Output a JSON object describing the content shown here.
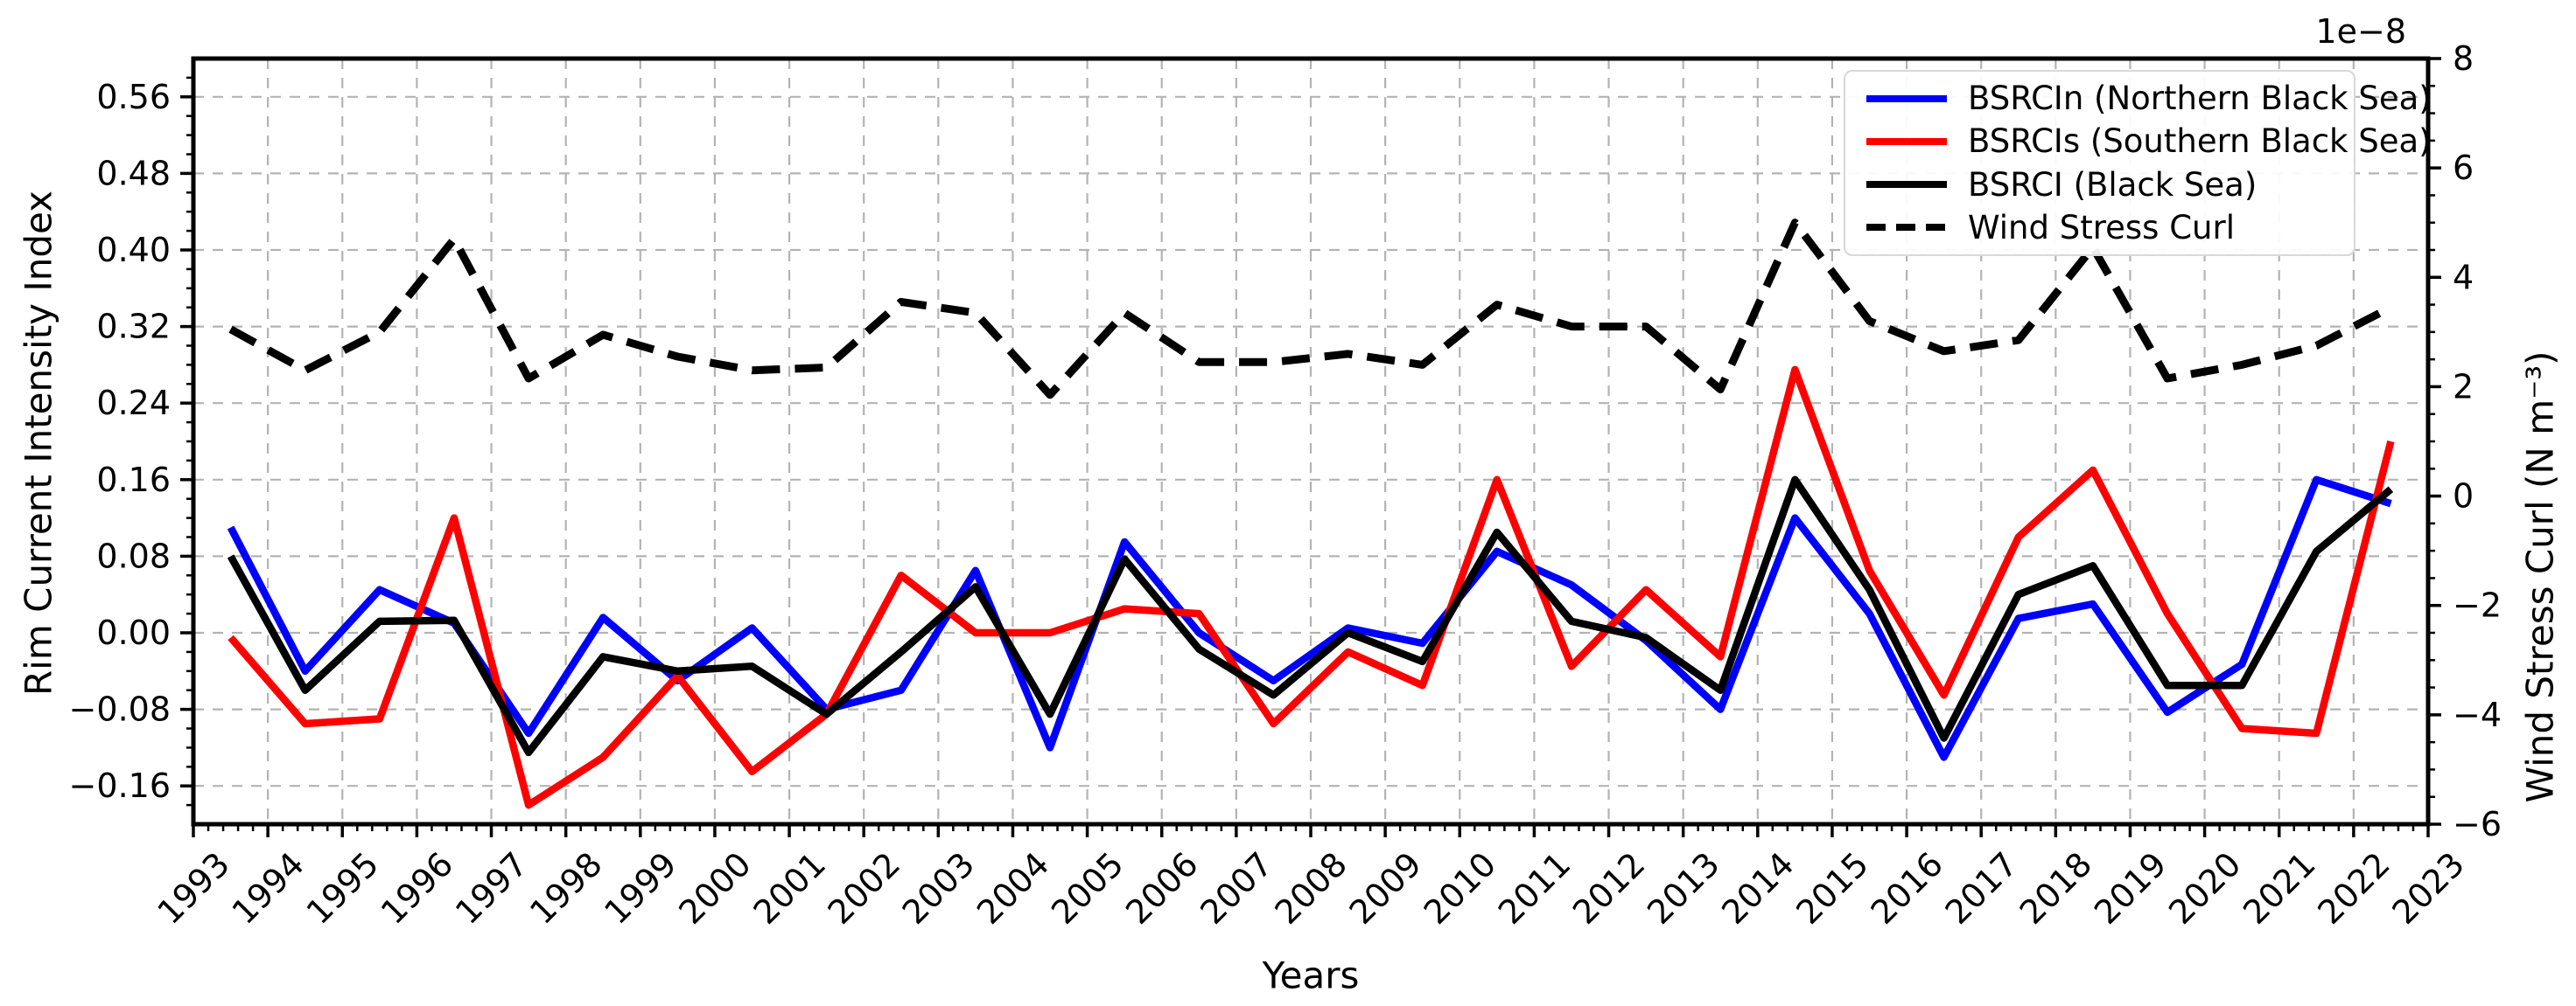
{
  "figure": {
    "offset_text": "1e−8",
    "xlabel": "Years",
    "ylabel_left": "Rim Current Intensity Index",
    "ylabel_right": "Wind Stress Curl (N m⁻³)"
  },
  "legend": {
    "items": [
      {
        "label": "BSRCIn (Northern Black Sea)",
        "color": "#0000ff",
        "dashed": false
      },
      {
        "label": "BSRCIs (Southern Black Sea)",
        "color": "#ff0000",
        "dashed": false
      },
      {
        "label": "BSRCI (Black Sea)",
        "color": "#000000",
        "dashed": false
      },
      {
        "label": "Wind Stress Curl",
        "color": "#000000",
        "dashed": true
      }
    ]
  },
  "axes": {
    "x_ticks": {
      "values": [
        1993,
        1994,
        1995,
        1996,
        1997,
        1998,
        1999,
        2000,
        2001,
        2002,
        2003,
        2004,
        2005,
        2006,
        2007,
        2008,
        2009,
        2010,
        2011,
        2012,
        2013,
        2014,
        2015,
        2016,
        2017,
        2018,
        2019,
        2020,
        2021,
        2022,
        2023
      ],
      "labels": [
        "1993",
        "1994",
        "1995",
        "1996",
        "1997",
        "1998",
        "1999",
        "2000",
        "2001",
        "2002",
        "2003",
        "2004",
        "2005",
        "2006",
        "2007",
        "2008",
        "2009",
        "2010",
        "2011",
        "2012",
        "2013",
        "2014",
        "2015",
        "2016",
        "2017",
        "2018",
        "2019",
        "2020",
        "2021",
        "2022",
        "2023"
      ],
      "minor_step": 0.2
    },
    "y_left": {
      "lim": [
        -0.2,
        0.6
      ],
      "tick_values": [
        0.56,
        0.48,
        0.4,
        0.32,
        0.24,
        0.16,
        0.08,
        0.0,
        -0.08,
        -0.16
      ],
      "tick_labels": [
        "0.56",
        "0.48",
        "0.40",
        "0.32",
        "0.24",
        "0.16",
        "0.08",
        "0.00",
        "−0.08",
        "−0.16"
      ],
      "minor_step": 0.02,
      "grid": true
    },
    "y_right": {
      "lim_1e8": [
        -6,
        8
      ],
      "tick_values": [
        8,
        6,
        4,
        2,
        0,
        -2,
        -4,
        -6
      ],
      "tick_labels": [
        "8",
        "6",
        "4",
        "2",
        "0",
        "−2",
        "−4",
        "−6"
      ],
      "minor_step": 0.5,
      "grid": false
    }
  },
  "chart_data": {
    "type": "line",
    "title": "",
    "xlabel": "Years",
    "ylabel_left": "Rim Current Intensity Index",
    "ylabel_right": "Wind Stress Curl (N m⁻³), units 1e−8",
    "x_range_years": [
      1993,
      2023
    ],
    "point_offset_years": 0.5,
    "years": [
      1993,
      1994,
      1995,
      1996,
      1997,
      1998,
      1999,
      2000,
      2001,
      2002,
      2003,
      2004,
      2005,
      2006,
      2007,
      2008,
      2009,
      2010,
      2011,
      2012,
      2013,
      2014,
      2015,
      2016,
      2017,
      2018,
      2019,
      2020,
      2021,
      2022
    ],
    "series": [
      {
        "name": "BSRCIn (Northern Black Sea)",
        "color": "#0000ff",
        "style": "solid",
        "axis": "left",
        "values": [
          0.11,
          -0.04,
          0.045,
          0.01,
          -0.105,
          0.016,
          -0.05,
          0.005,
          -0.08,
          -0.06,
          0.065,
          -0.12,
          0.095,
          0.0,
          -0.05,
          0.005,
          -0.011,
          0.085,
          0.05,
          -0.008,
          -0.08,
          0.12,
          0.02,
          -0.13,
          0.015,
          0.03,
          -0.083,
          -0.033,
          0.16,
          0.135
        ]
      },
      {
        "name": "BSRCIs (Southern Black Sea)",
        "color": "#ff0000",
        "style": "solid",
        "axis": "left",
        "values": [
          -0.005,
          -0.095,
          -0.09,
          0.12,
          -0.18,
          -0.13,
          -0.045,
          -0.145,
          -0.085,
          0.06,
          0.0,
          0.0,
          0.025,
          0.02,
          -0.095,
          -0.02,
          -0.055,
          0.16,
          -0.035,
          0.045,
          -0.025,
          0.275,
          0.065,
          -0.065,
          0.1,
          0.17,
          0.02,
          -0.1,
          -0.105,
          0.2
        ]
      },
      {
        "name": "BSRCI (Black Sea)",
        "color": "#000000",
        "style": "solid",
        "axis": "left",
        "values": [
          0.08,
          -0.06,
          0.012,
          0.013,
          -0.125,
          -0.025,
          -0.04,
          -0.035,
          -0.085,
          -0.02,
          0.048,
          -0.085,
          0.077,
          -0.017,
          -0.065,
          0.0,
          -0.03,
          0.105,
          0.012,
          -0.005,
          -0.06,
          0.16,
          0.045,
          -0.11,
          0.04,
          0.07,
          -0.055,
          -0.055,
          0.085,
          0.15
        ]
      },
      {
        "name": "Wind Stress Curl",
        "color": "#000000",
        "style": "dashed",
        "axis": "right_1e8",
        "values": [
          3.05,
          2.3,
          3.0,
          4.7,
          2.15,
          2.95,
          2.55,
          2.3,
          2.35,
          3.55,
          3.35,
          1.85,
          3.35,
          2.45,
          2.45,
          2.6,
          2.4,
          3.5,
          3.1,
          3.1,
          1.95,
          5.0,
          3.2,
          2.65,
          2.85,
          4.55,
          2.15,
          2.4,
          2.75,
          3.45
        ]
      }
    ],
    "legend_position": "upper right",
    "grid": "dashed, both axes (left y-ticks and every year)"
  }
}
